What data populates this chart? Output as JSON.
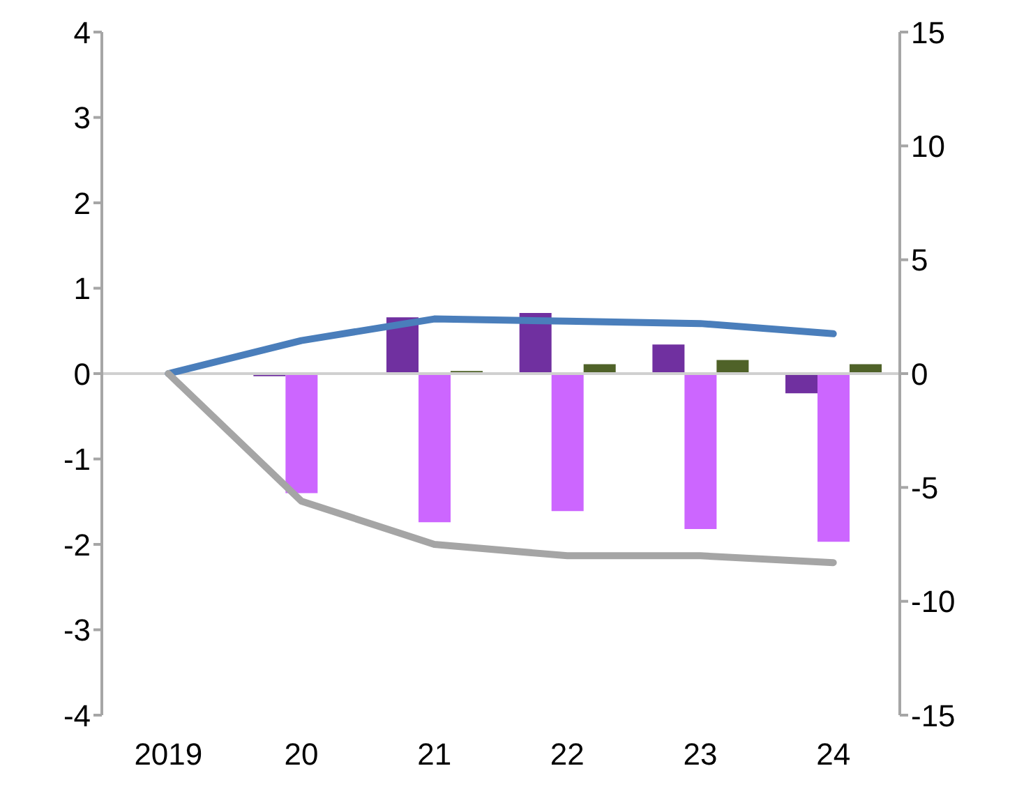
{
  "chart_data": {
    "type": "bar",
    "categories": [
      "2019",
      "20",
      "21",
      "22",
      "23",
      "24"
    ],
    "series": [
      {
        "color": "#7030a0",
        "values": [
          null,
          -0.03,
          0.66,
          0.71,
          0.34,
          -0.23
        ]
      },
      {
        "color": "#cc66ff",
        "values": [
          null,
          -1.4,
          -1.74,
          -1.61,
          -1.82,
          -1.97
        ]
      },
      {
        "color": "#4f6228",
        "values": [
          null,
          null,
          0.03,
          0.11,
          0.16,
          0.11
        ]
      },
      {
        "type": "line",
        "axis": "y2",
        "color": "#4a7ebb",
        "values": [
          0,
          1.45,
          2.4,
          2.3,
          2.2,
          1.75
        ]
      },
      {
        "type": "line",
        "axis": "y2",
        "color": "#a5a5a5",
        "values": [
          0,
          -5.6,
          -7.5,
          -8.0,
          -8.0,
          -8.3
        ]
      }
    ],
    "ylim": [
      -4,
      4
    ],
    "yticks": [
      -4,
      -3,
      -2,
      -1,
      0,
      1,
      2,
      3,
      4
    ],
    "y2lim": [
      -15,
      15
    ],
    "y2ticks": [
      -15,
      -10,
      -5,
      0,
      5,
      10,
      15
    ],
    "legend": false
  }
}
